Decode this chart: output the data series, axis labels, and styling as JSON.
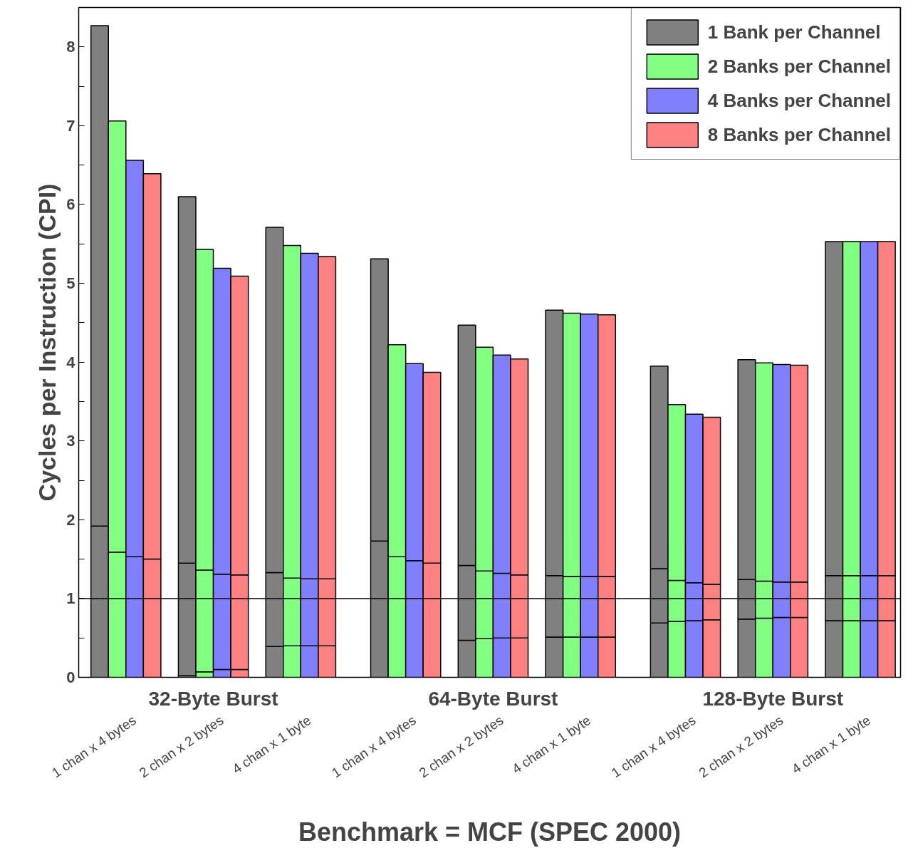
{
  "chart_data": {
    "type": "bar",
    "stacked": true,
    "xlabel": "Benchmark = MCF (SPEC 2000)",
    "ylabel": "Cycles per Instruction (CPI)",
    "categories": [
      null,
      null,
      "1 chan x 4 bytes",
      null,
      null,
      null,
      null,
      "2 chan x 2 bytes",
      null,
      null,
      null,
      null,
      "4 chan x 1 byte",
      null,
      null,
      null,
      null,
      null,
      "1 chan x 4 bytes",
      null,
      null,
      null,
      null,
      "2 chan x 2 bytes",
      null,
      null,
      null,
      null,
      "4 chan x 1 byte",
      null,
      null,
      null,
      null,
      null,
      "1 chan x 4 bytes",
      null,
      null,
      null,
      null,
      "2 chan x 2 bytes",
      null,
      null,
      null,
      null,
      "4 chan x 1 byte",
      null
    ],
    "annotations": [
      "32-Byte Burst",
      "64-Byte Burst",
      "128-Byte Burst"
    ],
    "ylim": [
      0,
      8.5
    ],
    "yticks": [
      0,
      {
        "value": 0.5,
        "label": null
      },
      1,
      {
        "value": 1.5,
        "label": null
      },
      2,
      {
        "value": 2.5,
        "label": null
      },
      3,
      {
        "value": 3.5,
        "label": null
      },
      4,
      {
        "value": 4.5,
        "label": null
      },
      5,
      {
        "value": 5.5,
        "label": null
      },
      6,
      {
        "value": 6.5,
        "label": null
      },
      7,
      {
        "value": 7.5,
        "label": null
      },
      8
    ],
    "series": [
      {
        "colors": [
          "#808080",
          "#80ff80",
          "#8080ff",
          "#ff8080",
          null,
          "#808080",
          "#80ff80",
          "#8080ff",
          "#ff8080",
          null,
          "#808080",
          "#80ff80",
          "#8080ff",
          "#ff8080",
          null,
          null,
          "#808080",
          "#80ff80",
          "#8080ff",
          "#ff8080",
          null,
          "#808080",
          "#80ff80",
          "#8080ff",
          "#ff8080",
          null,
          "#808080",
          "#80ff80",
          "#8080ff",
          "#ff8080",
          null,
          null,
          "#808080",
          "#80ff80",
          "#8080ff",
          "#ff8080",
          null,
          "#808080",
          "#80ff80",
          "#8080ff",
          "#ff8080",
          null,
          "#808080",
          "#80ff80",
          "#8080ff",
          "#ff8080"
        ],
        "values": [
          null,
          null,
          null,
          null,
          null,
          0.02,
          0.07,
          0.1,
          0.1,
          null,
          0.39,
          0.4,
          0.4,
          0.4,
          null,
          null,
          null,
          null,
          null,
          null,
          null,
          0.47,
          0.49,
          0.5,
          0.5,
          null,
          0.51,
          0.51,
          0.51,
          0.51,
          null,
          null,
          0.69,
          0.71,
          0.72,
          0.73,
          null,
          0.74,
          0.75,
          0.76,
          0.76,
          null,
          0.72,
          0.72,
          0.72,
          0.72
        ]
      },
      {
        "colors": [
          "#808080",
          "#80ff80",
          "#8080ff",
          "#ff8080",
          null,
          "#808080",
          "#80ff80",
          "#8080ff",
          "#ff8080",
          null,
          "#808080",
          "#80ff80",
          "#8080ff",
          "#ff8080",
          null,
          null,
          "#808080",
          "#80ff80",
          "#8080ff",
          "#ff8080",
          null,
          "#808080",
          "#80ff80",
          "#8080ff",
          "#ff8080",
          null,
          "#808080",
          "#80ff80",
          "#8080ff",
          "#ff8080",
          null,
          null,
          "#808080",
          "#80ff80",
          "#8080ff",
          "#ff8080",
          null,
          "#808080",
          "#80ff80",
          "#8080ff",
          "#ff8080",
          null,
          "#808080",
          "#80ff80",
          "#8080ff",
          "#ff8080"
        ],
        "values": [
          1.92,
          1.59,
          1.53,
          1.5,
          null,
          1.43,
          1.29,
          1.21,
          1.2,
          null,
          0.94,
          0.86,
          0.85,
          0.85,
          null,
          null,
          1.73,
          1.53,
          1.48,
          1.45,
          null,
          0.95,
          0.86,
          0.82,
          0.8,
          null,
          0.78,
          0.77,
          0.77,
          0.77,
          null,
          null,
          0.69,
          0.52,
          0.48,
          0.45,
          null,
          0.5,
          0.47,
          0.45,
          0.45,
          null,
          0.57,
          0.57,
          0.57,
          0.57
        ]
      },
      {
        "colors": [
          "#808080",
          "#80ff80",
          "#8080ff",
          "#ff8080",
          null,
          "#808080",
          "#80ff80",
          "#8080ff",
          "#ff8080",
          null,
          "#808080",
          "#80ff80",
          "#8080ff",
          "#ff8080",
          null,
          null,
          "#808080",
          "#80ff80",
          "#8080ff",
          "#ff8080",
          null,
          "#808080",
          "#80ff80",
          "#8080ff",
          "#ff8080",
          null,
          "#808080",
          "#80ff80",
          "#8080ff",
          "#ff8080",
          null,
          null,
          "#808080",
          "#80ff80",
          "#8080ff",
          "#ff8080",
          null,
          "#808080",
          "#80ff80",
          "#8080ff",
          "#ff8080",
          null,
          "#808080",
          "#80ff80",
          "#8080ff",
          "#ff8080"
        ],
        "values": [
          6.35,
          5.47,
          5.03,
          4.89,
          null,
          4.65,
          4.07,
          3.88,
          3.79,
          null,
          4.38,
          4.22,
          4.13,
          4.09,
          null,
          null,
          3.58,
          2.69,
          2.5,
          2.42,
          null,
          3.05,
          2.84,
          2.77,
          2.74,
          null,
          3.37,
          3.34,
          3.33,
          3.32,
          null,
          null,
          2.57,
          2.23,
          2.14,
          2.12,
          null,
          2.79,
          2.77,
          2.76,
          2.75,
          null,
          4.24,
          4.24,
          4.24,
          4.24
        ]
      },
      {
        "name": "1 Bank per Channel",
        "color": "#808080",
        "values": [
          null,
          null,
          null,
          null,
          null,
          null,
          null,
          null,
          null,
          null,
          null,
          null,
          null,
          null,
          null,
          null,
          null,
          null,
          null,
          null,
          null,
          null,
          null,
          null,
          null,
          null,
          null,
          null,
          null,
          null,
          null,
          null,
          null,
          null,
          null,
          null,
          null,
          null,
          null,
          null,
          null,
          null,
          null,
          null,
          null,
          null
        ]
      },
      {
        "name": "2 Banks per Channel",
        "color": "#80ff80",
        "values": [
          null,
          null,
          null,
          null,
          null,
          null,
          null,
          null,
          null,
          null,
          null,
          null,
          null,
          null,
          null,
          null,
          null,
          null,
          null,
          null,
          null,
          null,
          null,
          null,
          null,
          null,
          null,
          null,
          null,
          null,
          null,
          null,
          null,
          null,
          null,
          null,
          null,
          null,
          null,
          null,
          null,
          null,
          null,
          null,
          null,
          null
        ]
      },
      {
        "name": "4 Banks per Channel",
        "color": "#8080ff",
        "values": [
          null,
          null,
          null,
          null,
          null,
          null,
          null,
          null,
          null,
          null,
          null,
          null,
          null,
          null,
          null,
          null,
          null,
          null,
          null,
          null,
          null,
          null,
          null,
          null,
          null,
          null,
          null,
          null,
          null,
          null,
          null,
          null,
          null,
          null,
          null,
          null,
          null,
          null,
          null,
          null,
          null,
          null,
          null,
          null,
          null,
          null
        ]
      },
      {
        "name": "8 Banks per Channel",
        "color": "#ff8080",
        "values": [
          null,
          null,
          null,
          null,
          null,
          null,
          null,
          null,
          null,
          null,
          null,
          null,
          null,
          null,
          null,
          null,
          null,
          null,
          null,
          null,
          null,
          null,
          null,
          null,
          null,
          null,
          null,
          null,
          null,
          null,
          null,
          null,
          null,
          null,
          null,
          null,
          null,
          null,
          null,
          null,
          null,
          null,
          null,
          null,
          null,
          null
        ]
      }
    ],
    "ref_lines": [
      {
        "axis": "y",
        "value": 1,
        "color": "#000000"
      }
    ],
    "legend": "top right"
  }
}
